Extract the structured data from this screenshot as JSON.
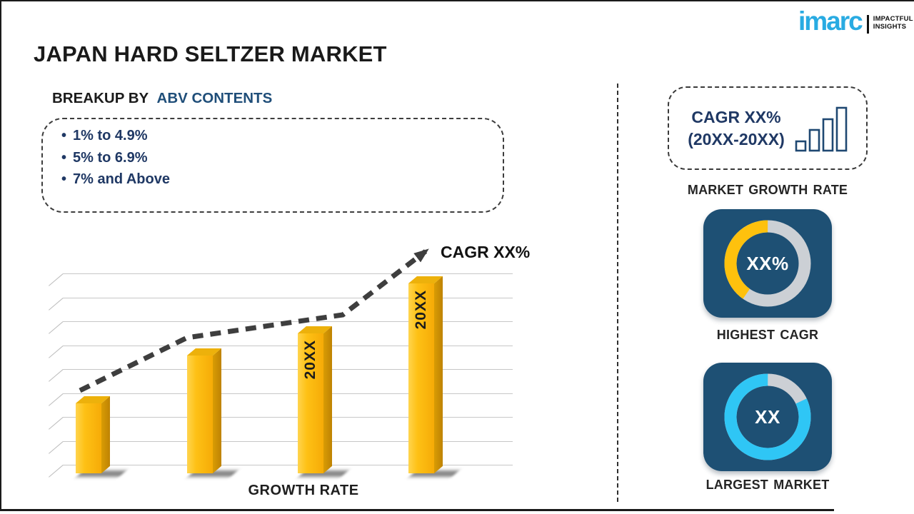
{
  "header": {
    "title": "JAPAN HARD SELTZER MARKET",
    "logo": {
      "brand": "imarc",
      "tagline_line1": "IMPACTFUL",
      "tagline_line2": "INSIGHTS",
      "brand_color": "#29abe2"
    }
  },
  "breakup": {
    "heading_prefix": "BREAKUP BY",
    "heading_highlight": "ABV CONTENTS",
    "items": [
      "1% to 4.9%",
      "5% to 6.9%",
      "7% and Above"
    ]
  },
  "chart_data": {
    "type": "bar",
    "title": "",
    "xlabel": "GROWTH RATE",
    "categories": [
      "",
      "",
      "20XX",
      "20XX"
    ],
    "values": [
      35,
      59,
      70,
      95
    ],
    "value_scale_max": 100,
    "gridlines": 9,
    "grid": "horizontal lines with 3D perspective ticks",
    "bar_color": "#FDB90D",
    "trend": {
      "label": "CAGR XX%",
      "style": "dashed rising arrow",
      "color": "#3e3e3e"
    }
  },
  "sidebar": {
    "growth_box": {
      "line1": "CAGR XX%",
      "line2": "(20XX-20XX)"
    },
    "growth_caption": "MARKET GROWTH RATE",
    "highest_cagr": {
      "value": "XX%",
      "caption": "HIGHEST CAGR",
      "fraction": 0.403,
      "color": "#fec10d",
      "track_color": "#ccd0d5"
    },
    "largest_market": {
      "value": "XX",
      "caption": "LARGEST MARKET",
      "fraction": 0.82,
      "color": "#2fc6f5",
      "track_color": "#ccd0d5"
    },
    "card_color": "#1e5074"
  }
}
